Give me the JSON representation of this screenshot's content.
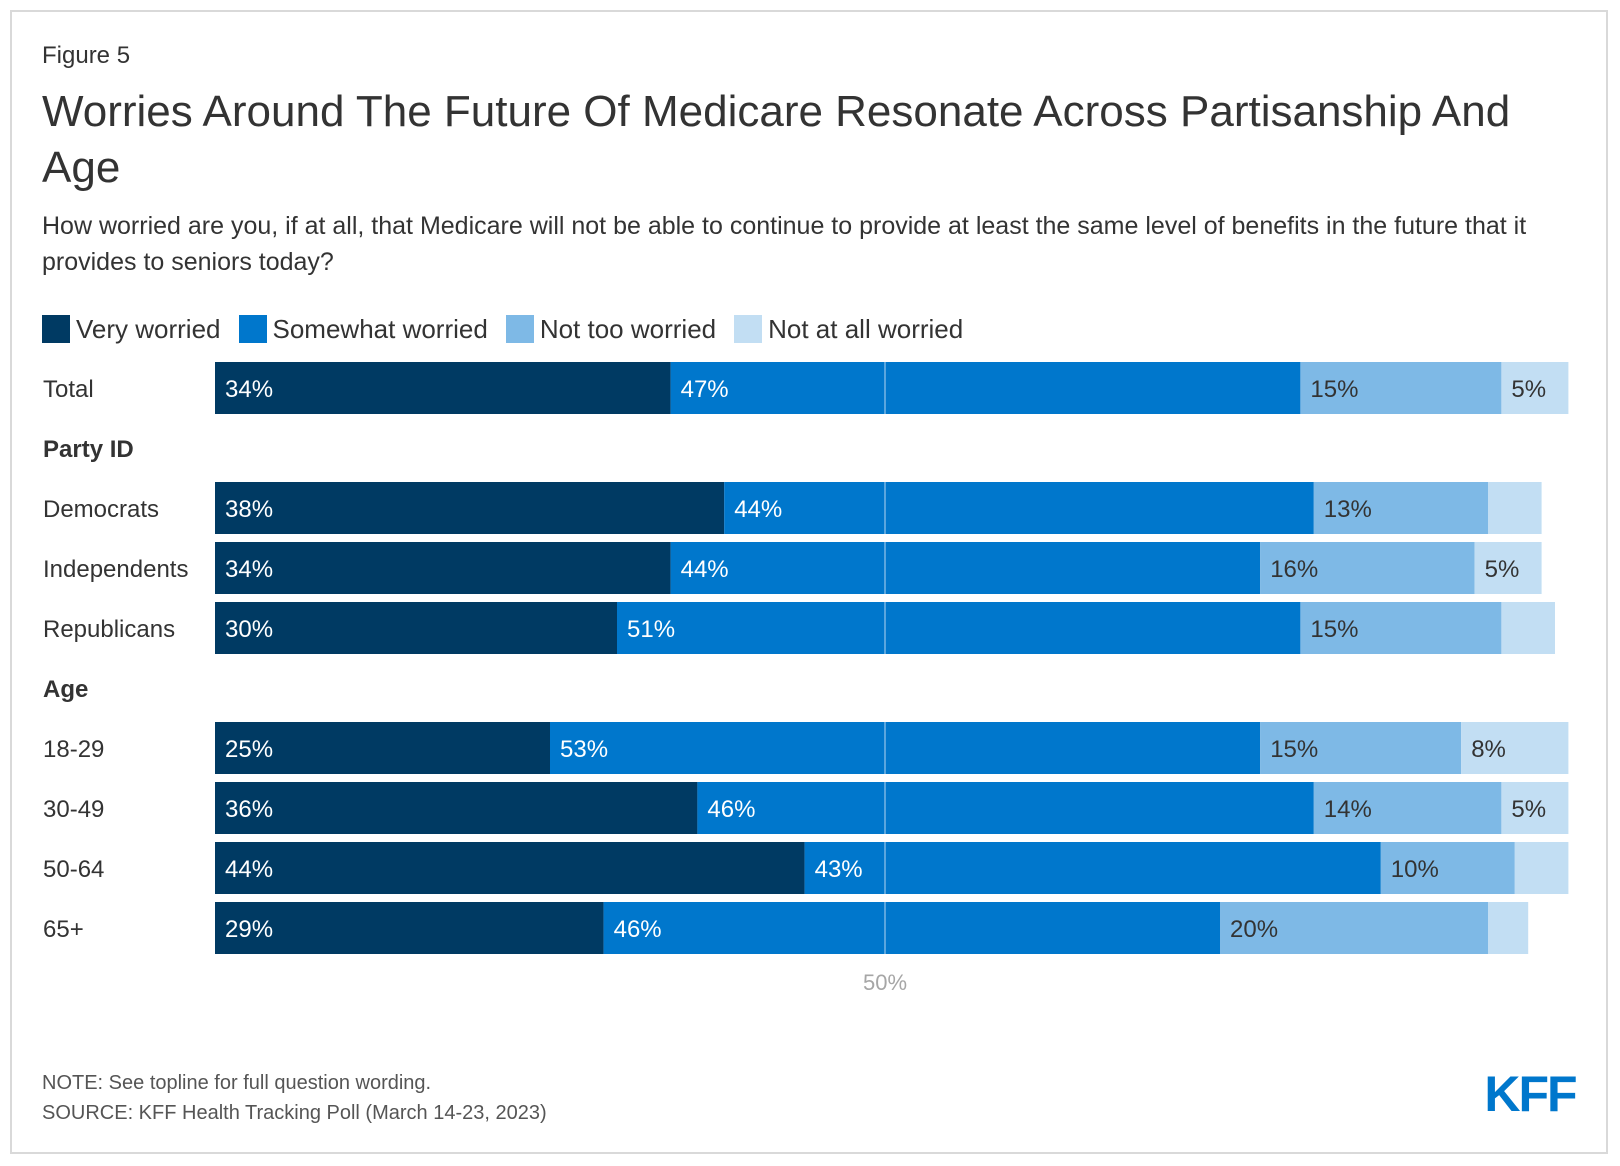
{
  "figure_label": "Figure 5",
  "title": "Worries Around The Future Of Medicare Resonate Across Partisanship And Age",
  "subtitle": "How worried are you, if at all, that Medicare will not be able to continue to provide at least the same level of benefits in the future that it provides to seniors today?",
  "note": "NOTE: See topline for full question wording.",
  "source": "SOURCE: KFF Health Tracking Poll (March 14-23, 2023)",
  "logo_text": "KFF",
  "legend": [
    {
      "label": "Very worried",
      "color": "#003A63"
    },
    {
      "label": "Somewhat worried",
      "color": "#0077CC"
    },
    {
      "label": "Not too worried",
      "color": "#7EB9E6"
    },
    {
      "label": "Not at all worried",
      "color": "#C2DEF3"
    }
  ],
  "chart_data": {
    "type": "bar",
    "orientation": "horizontal",
    "stacked": true,
    "xlim": [
      0,
      100
    ],
    "reference_line": {
      "value": 50,
      "label": "50%"
    },
    "series_names": [
      "Very worried",
      "Somewhat worried",
      "Not too worried",
      "Not at all worried"
    ],
    "rows": [
      {
        "kind": "bar",
        "label": "Total",
        "values": [
          34,
          47,
          15,
          5
        ],
        "labels": [
          "34%",
          "47%",
          "15%",
          "5%"
        ]
      },
      {
        "kind": "header",
        "label": "Party ID"
      },
      {
        "kind": "bar",
        "label": "Democrats",
        "values": [
          38,
          44,
          13,
          4
        ],
        "labels": [
          "38%",
          "44%",
          "13%",
          ""
        ]
      },
      {
        "kind": "bar",
        "label": "Independents",
        "values": [
          34,
          44,
          16,
          5
        ],
        "labels": [
          "34%",
          "44%",
          "16%",
          "5%"
        ]
      },
      {
        "kind": "bar",
        "label": "Republicans",
        "values": [
          30,
          51,
          15,
          4
        ],
        "labels": [
          "30%",
          "51%",
          "15%",
          ""
        ]
      },
      {
        "kind": "header",
        "label": "Age"
      },
      {
        "kind": "bar",
        "label": "18-29",
        "values": [
          25,
          53,
          15,
          8
        ],
        "labels": [
          "25%",
          "53%",
          "15%",
          "8%"
        ]
      },
      {
        "kind": "bar",
        "label": "30-49",
        "values": [
          36,
          46,
          14,
          5
        ],
        "labels": [
          "36%",
          "46%",
          "14%",
          "5%"
        ]
      },
      {
        "kind": "bar",
        "label": "50-64",
        "values": [
          44,
          43,
          10,
          4
        ],
        "labels": [
          "44%",
          "43%",
          "10%",
          ""
        ]
      },
      {
        "kind": "bar",
        "label": "65+",
        "values": [
          29,
          46,
          20,
          3
        ],
        "labels": [
          "29%",
          "46%",
          "20%",
          ""
        ]
      }
    ]
  }
}
